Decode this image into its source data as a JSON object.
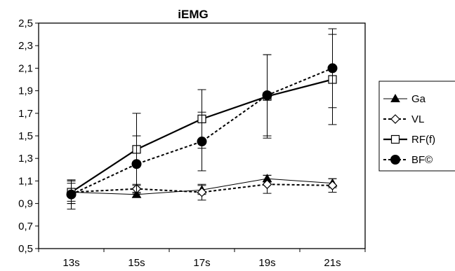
{
  "chart_data": {
    "type": "line",
    "title": "iEMG",
    "xlabel": "",
    "ylabel": "",
    "categories": [
      "13s",
      "15s",
      "17s",
      "19s",
      "21s"
    ],
    "ylim": [
      0.5,
      2.5
    ],
    "yticks": [
      0.5,
      0.7,
      0.9,
      1.1,
      1.3,
      1.5,
      1.7,
      1.9,
      2.1,
      2.3,
      2.5
    ],
    "ytick_labels": [
      "0,5",
      "0,7",
      "0,9",
      "1,1",
      "1,3",
      "1,5",
      "1,7",
      "1,9",
      "2,1",
      "2,3",
      "2,5"
    ],
    "grid": false,
    "legend_position": "right",
    "series": [
      {
        "name": "Ga",
        "values": [
          1.0,
          0.98,
          1.02,
          1.12,
          1.08
        ],
        "errors": [
          0.1,
          0.0,
          0.04,
          0.03,
          0.04
        ],
        "marker": "triangle-filled",
        "line": "solid-thin"
      },
      {
        "name": "VL",
        "values": [
          1.0,
          1.03,
          1.0,
          1.07,
          1.06
        ],
        "errors": [
          0.08,
          0.04,
          0.07,
          0.08,
          0.06
        ],
        "marker": "diamond-open",
        "line": "dotted"
      },
      {
        "name": "RF(f)",
        "values": [
          1.0,
          1.38,
          1.65,
          1.85,
          2.0
        ],
        "errors": [
          0.1,
          0.32,
          0.26,
          0.37,
          0.4
        ],
        "marker": "square-open",
        "line": "solid-thick"
      },
      {
        "name": "BF©",
        "values": [
          0.98,
          1.25,
          1.45,
          1.86,
          2.1
        ],
        "errors": [
          0.13,
          0.25,
          0.26,
          0.36,
          0.35
        ],
        "marker": "circle-filled",
        "line": "dotted"
      }
    ]
  }
}
